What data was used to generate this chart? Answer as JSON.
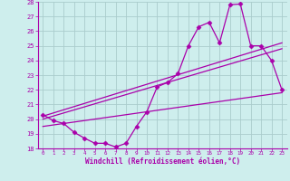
{
  "xlabel": "Windchill (Refroidissement éolien,°C)",
  "bg_color": "#ceeeed",
  "line_color": "#aa00aa",
  "grid_color": "#aacccc",
  "xlim": [
    -0.5,
    23.5
  ],
  "ylim": [
    18,
    28
  ],
  "yticks": [
    18,
    19,
    20,
    21,
    22,
    23,
    24,
    25,
    26,
    27,
    28
  ],
  "xticks": [
    0,
    1,
    2,
    3,
    4,
    5,
    6,
    7,
    8,
    9,
    10,
    11,
    12,
    13,
    14,
    15,
    16,
    17,
    18,
    19,
    20,
    21,
    22,
    23
  ],
  "series1_x": [
    0,
    1,
    2,
    3,
    4,
    5,
    6,
    7,
    8,
    9,
    10,
    11,
    12,
    13,
    14,
    15,
    16,
    17,
    18,
    19,
    20,
    21,
    22,
    23
  ],
  "series1_y": [
    20.3,
    19.9,
    19.7,
    19.1,
    18.7,
    18.35,
    18.35,
    18.1,
    18.35,
    19.5,
    20.5,
    22.2,
    22.5,
    23.1,
    25.0,
    26.3,
    26.6,
    25.2,
    27.8,
    27.85,
    25.0,
    25.0,
    24.0,
    22.0
  ],
  "line2_x": [
    0,
    23
  ],
  "line2_y": [
    19.5,
    21.8
  ],
  "line3_x": [
    0,
    23
  ],
  "line3_y": [
    20.0,
    24.8
  ],
  "line4_x": [
    0,
    23
  ],
  "line4_y": [
    20.2,
    25.2
  ],
  "marker": "D",
  "marker_size": 2.5,
  "linewidth": 0.9
}
